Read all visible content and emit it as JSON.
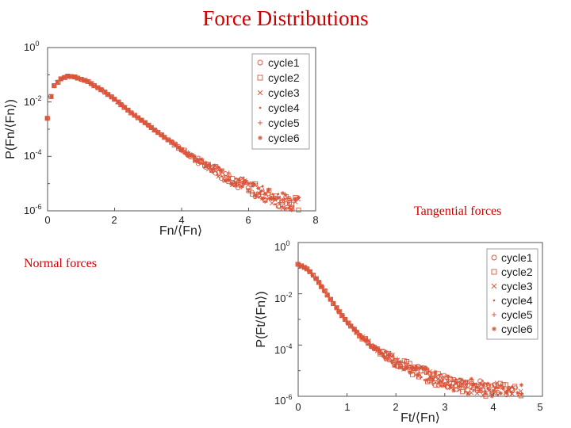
{
  "slide": {
    "title": "Force Distributions",
    "caption_tangential": "Tangential forces",
    "caption_normal": "Normal forces"
  },
  "colors": {
    "marker": "#d9553a",
    "axis": "#555555",
    "text": "#222222",
    "title": "#cc0000"
  },
  "chart_data": [
    {
      "id": "normal",
      "type": "scatter",
      "title": "",
      "xlabel": "Fn/⟨Fn⟩",
      "ylabel": "P(Fn/⟨Fn⟩)",
      "xlim": [
        0,
        8
      ],
      "ylim_log10": [
        -6,
        0
      ],
      "x_ticks": [
        "0",
        "2",
        "4",
        "6",
        "8"
      ],
      "y_ticks": [
        {
          "base": "10",
          "exp": "0"
        },
        {
          "base": "10",
          "exp": "-2"
        },
        {
          "base": "10",
          "exp": "-4"
        },
        {
          "base": "10",
          "exp": "-6"
        }
      ],
      "yscale": "log",
      "legend_position": "top-right",
      "series": [
        {
          "name": "cycle1",
          "marker": "circle"
        },
        {
          "name": "cycle2",
          "marker": "square"
        },
        {
          "name": "cycle3",
          "marker": "x"
        },
        {
          "name": "cycle4",
          "marker": "dot"
        },
        {
          "name": "cycle5",
          "marker": "plus"
        },
        {
          "name": "cycle6",
          "marker": "star"
        }
      ],
      "curve_log10": [
        [
          0.0,
          -2.6
        ],
        [
          0.05,
          -2.0
        ],
        [
          0.2,
          -1.4
        ],
        [
          0.4,
          -1.15
        ],
        [
          0.6,
          -1.05
        ],
        [
          0.8,
          -1.08
        ],
        [
          1.2,
          -1.25
        ],
        [
          1.6,
          -1.55
        ],
        [
          2.0,
          -1.9
        ],
        [
          2.5,
          -2.4
        ],
        [
          3.0,
          -2.85
        ],
        [
          3.5,
          -3.3
        ],
        [
          4.0,
          -3.75
        ],
        [
          4.5,
          -4.15
        ],
        [
          5.0,
          -4.5
        ],
        [
          5.5,
          -4.85
        ],
        [
          6.0,
          -5.15
        ],
        [
          6.5,
          -5.4
        ],
        [
          7.0,
          -5.6
        ],
        [
          7.5,
          -5.8
        ]
      ],
      "curve_spacing": 0.1
    },
    {
      "id": "tangential",
      "type": "scatter",
      "title": "",
      "xlabel": "Ft/⟨Fn⟩",
      "ylabel": "P(Ft/⟨Fn⟩)",
      "xlim": [
        0,
        5
      ],
      "ylim_log10": [
        -6,
        0
      ],
      "x_ticks": [
        "0",
        "1",
        "2",
        "3",
        "4",
        "5"
      ],
      "y_ticks": [
        {
          "base": "10",
          "exp": "0"
        },
        {
          "base": "10",
          "exp": "-2"
        },
        {
          "base": "10",
          "exp": "-4"
        },
        {
          "base": "10",
          "exp": "-6"
        }
      ],
      "yscale": "log",
      "legend_position": "top-right",
      "series": [
        {
          "name": "cycle1",
          "marker": "circle"
        },
        {
          "name": "cycle2",
          "marker": "square"
        },
        {
          "name": "cycle3",
          "marker": "x"
        },
        {
          "name": "cycle4",
          "marker": "dot"
        },
        {
          "name": "cycle5",
          "marker": "plus"
        },
        {
          "name": "cycle6",
          "marker": "star"
        }
      ],
      "curve_log10": [
        [
          0.0,
          -0.85
        ],
        [
          0.2,
          -1.05
        ],
        [
          0.4,
          -1.5
        ],
        [
          0.6,
          -2.05
        ],
        [
          0.8,
          -2.6
        ],
        [
          1.0,
          -3.1
        ],
        [
          1.2,
          -3.5
        ],
        [
          1.4,
          -3.85
        ],
        [
          1.6,
          -4.15
        ],
        [
          1.8,
          -4.4
        ],
        [
          2.0,
          -4.65
        ],
        [
          2.4,
          -5.0
        ],
        [
          2.8,
          -5.3
        ],
        [
          3.2,
          -5.5
        ],
        [
          3.6,
          -5.65
        ],
        [
          4.0,
          -5.8
        ],
        [
          4.6,
          -5.9
        ]
      ],
      "curve_spacing": 0.06
    }
  ]
}
